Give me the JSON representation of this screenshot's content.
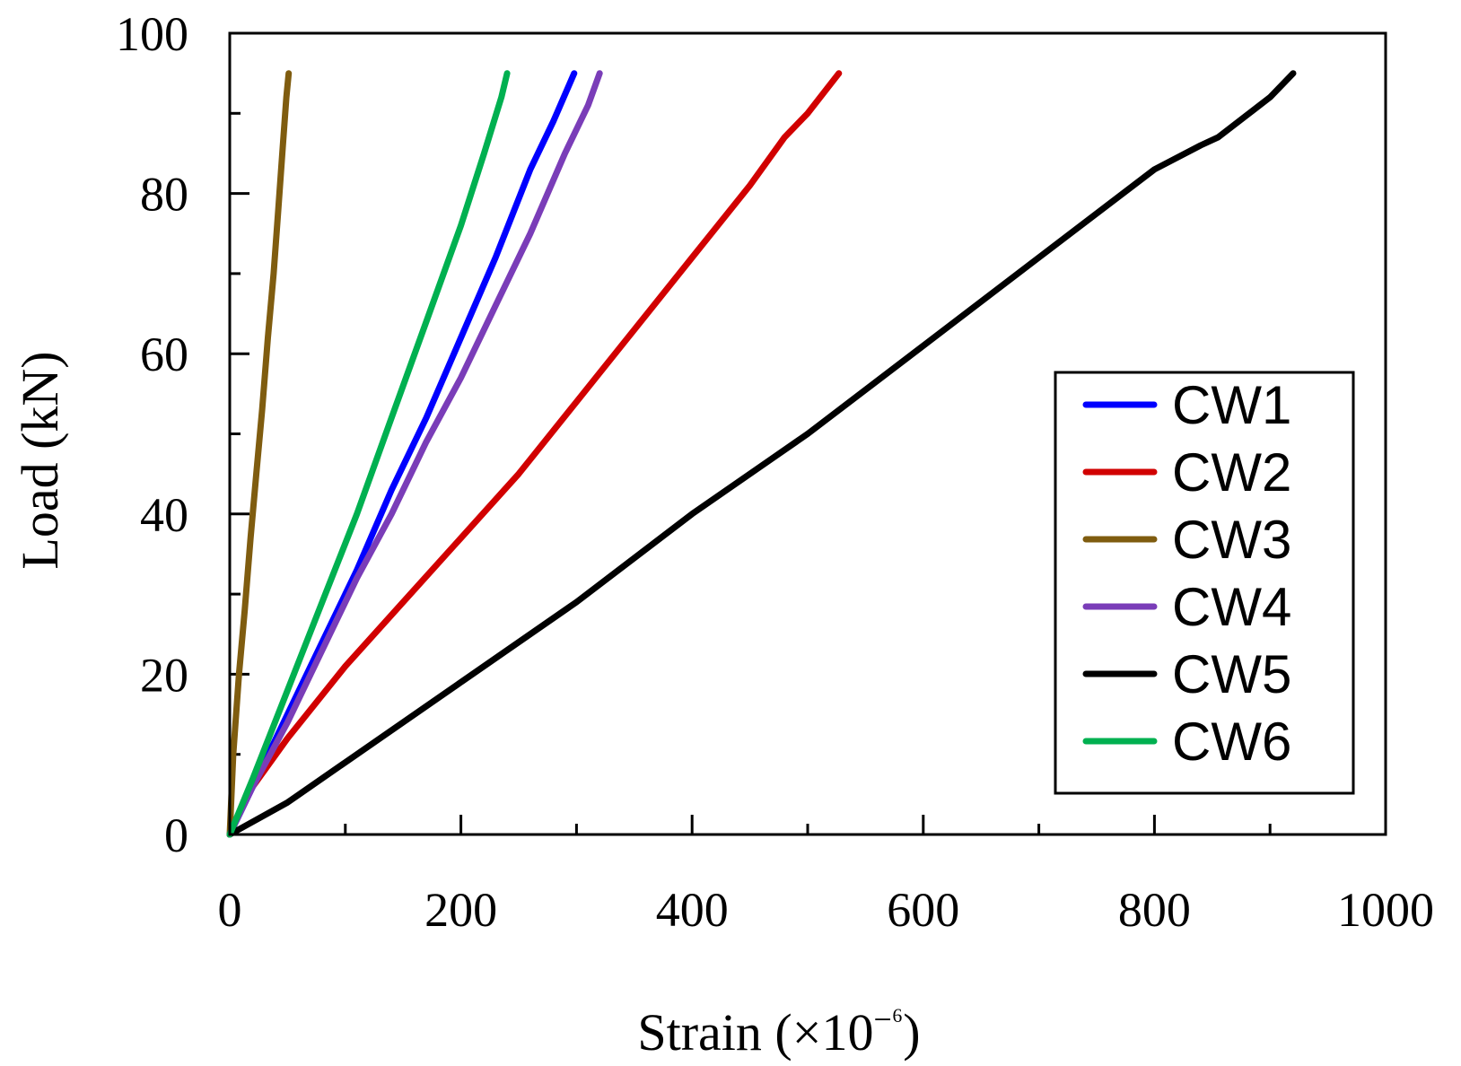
{
  "chart_data": {
    "type": "line",
    "title": "",
    "xlabel": "Strain (×10⁻⁶)",
    "xlabel_main": "Strain (",
    "xlabel_times": "×",
    "xlabel_base": "10",
    "xlabel_exp": "−⁶",
    "xlabel_close": ")",
    "ylabel": "Load (kN)",
    "xlim": [
      0,
      1000
    ],
    "ylim": [
      0,
      100
    ],
    "x_major_ticks": [
      0,
      200,
      400,
      600,
      800,
      1000
    ],
    "x_tick_labels": [
      "0",
      "200",
      "400",
      "600",
      "800",
      "1000"
    ],
    "x_minor_ticks": [
      100,
      300,
      500,
      700,
      900
    ],
    "y_major_ticks": [
      0,
      20,
      40,
      60,
      80,
      100
    ],
    "y_tick_labels": [
      "0",
      "20",
      "40",
      "60",
      "80",
      "100"
    ],
    "y_minor_ticks": [
      10,
      30,
      50,
      70,
      90
    ],
    "grid": false,
    "legend_position": "lower-right",
    "series": [
      {
        "name": "CW1",
        "color": "#0000ff",
        "x": [
          0,
          20,
          50,
          80,
          110,
          140,
          170,
          200,
          230,
          260,
          280,
          298
        ],
        "y": [
          0,
          6,
          15,
          24,
          33,
          43,
          52,
          62,
          72,
          83,
          89,
          95
        ]
      },
      {
        "name": "CW2",
        "color": "#d10000",
        "x": [
          0,
          15,
          50,
          100,
          150,
          200,
          250,
          300,
          350,
          400,
          450,
          480,
          500,
          527
        ],
        "y": [
          0,
          5,
          12,
          21,
          29,
          37,
          45,
          54,
          63,
          72,
          81,
          87,
          90,
          95
        ]
      },
      {
        "name": "CW3",
        "color": "#7f5c0f",
        "x": [
          0,
          3,
          8,
          13,
          18,
          23,
          28,
          33,
          38,
          42,
          46,
          49,
          51
        ],
        "y": [
          0,
          10,
          20,
          28,
          37,
          45,
          53,
          62,
          70,
          78,
          86,
          92,
          95
        ]
      },
      {
        "name": "CW4",
        "color": "#7a3db8",
        "x": [
          0,
          20,
          50,
          80,
          110,
          140,
          170,
          200,
          230,
          260,
          290,
          310,
          320
        ],
        "y": [
          0,
          6,
          14,
          23,
          32,
          40,
          49,
          57,
          66,
          75,
          85,
          91,
          95
        ]
      },
      {
        "name": "CW5",
        "color": "#000000",
        "x": [
          0,
          50,
          100,
          200,
          300,
          400,
          500,
          600,
          700,
          800,
          840,
          855,
          900,
          920
        ],
        "y": [
          0,
          4,
          9,
          19,
          29,
          40,
          50,
          61,
          72,
          83,
          86,
          87,
          92,
          95
        ]
      },
      {
        "name": "CW6",
        "color": "#00b050",
        "x": [
          0,
          20,
          50,
          80,
          110,
          140,
          170,
          200,
          220,
          235,
          240
        ],
        "y": [
          0,
          7,
          18,
          29,
          40,
          52,
          64,
          76,
          85,
          92,
          95
        ]
      }
    ]
  }
}
